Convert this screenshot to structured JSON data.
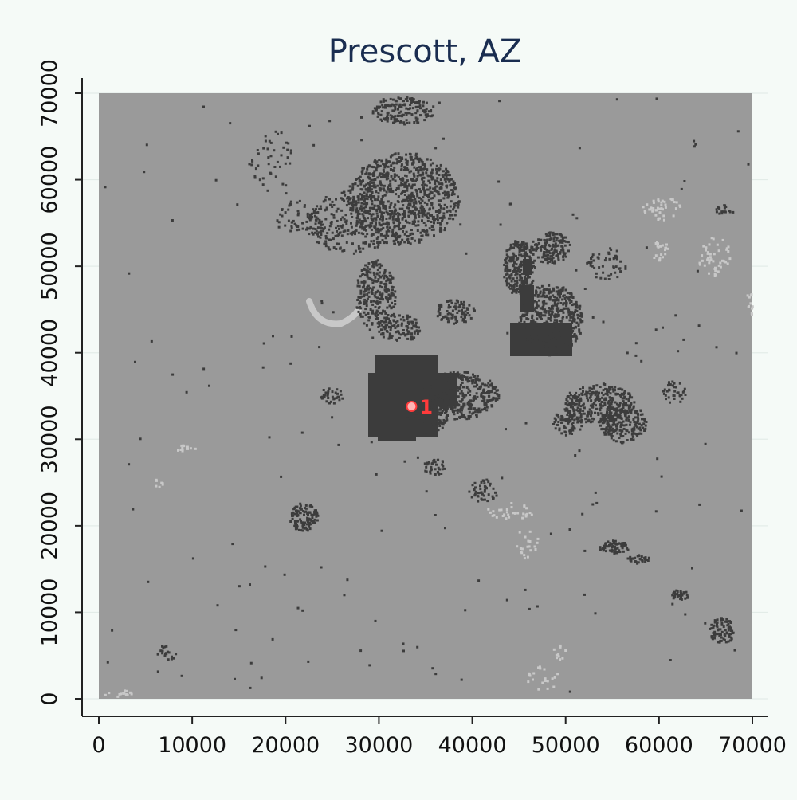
{
  "title": "Prescott, AZ",
  "x_ticks": [
    "0",
    "10000",
    "20000",
    "30000",
    "40000",
    "50000",
    "60000",
    "70000"
  ],
  "y_ticks": [
    "0",
    "10000",
    "20000",
    "30000",
    "40000",
    "50000",
    "60000",
    "70000"
  ],
  "marker_label": "1",
  "colors": {
    "background": "#f5faf7",
    "map_base": "#9a9a9a",
    "developed": "#3c3c3c",
    "light_patch": "#c8c8c8",
    "marker": "#ff3b3b",
    "title": "#1a2d50",
    "axis": "#222222"
  },
  "chart_data": {
    "type": "map",
    "xlim": [
      0,
      70000
    ],
    "ylim": [
      0,
      70000
    ],
    "grid": true,
    "markers": [
      {
        "label": "1",
        "x": 33500,
        "y": 33800
      }
    ]
  }
}
